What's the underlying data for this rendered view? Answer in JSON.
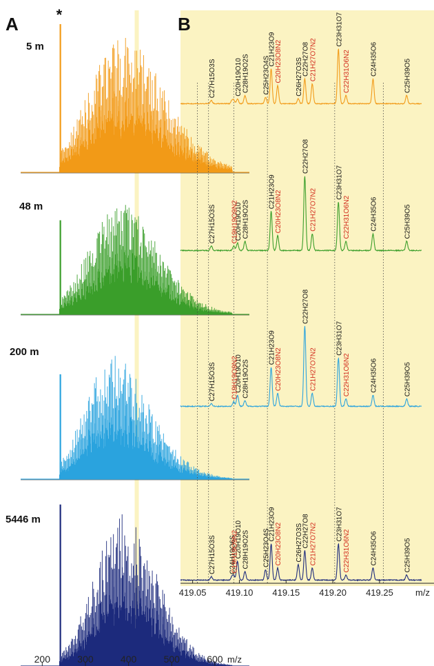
{
  "panel_labels": {
    "a": "A",
    "b": "B"
  },
  "colors": [
    "#f29a17",
    "#3a9e2a",
    "#2aa3de",
    "#1c2a7c"
  ],
  "highlight_color": "#fbf3c2",
  "chart_data": [
    {
      "type": "bar",
      "panel": "A",
      "description_units": "relative abundance",
      "xlabel": "m/z",
      "xlim": [
        150,
        680
      ],
      "xticks": [
        200,
        300,
        400,
        500,
        600
      ],
      "xtick_labels": [
        "200",
        "300",
        "400",
        "500",
        "600"
      ],
      "highlight_x": 419,
      "series": [
        {
          "name": "5 m",
          "color": "#f29a17",
          "envelope": {
            "center": 390,
            "width": 88,
            "skew": 0.12,
            "start": 240,
            "end": 640
          },
          "spike": {
            "x": 242,
            "value": 1.0,
            "marker": "*"
          }
        },
        {
          "name": "48 m",
          "color": "#3a9e2a",
          "envelope": {
            "center": 385,
            "width": 80,
            "skew": 0.1,
            "start": 240,
            "end": 640
          },
          "spike": {
            "x": 242,
            "value": 0.78
          }
        },
        {
          "name": "200 m",
          "color": "#2aa3de",
          "envelope": {
            "center": 368,
            "width": 74,
            "skew": 0.15,
            "start": 240,
            "end": 640
          },
          "spike": {
            "x": 242,
            "value": 0.78
          }
        },
        {
          "name": "5446 m",
          "color": "#1c2a7c",
          "envelope": {
            "center": 390,
            "width": 72,
            "skew": 0.08,
            "start": 240,
            "end": 640
          },
          "spike": {
            "x": 242,
            "value": 0.96
          }
        }
      ]
    },
    {
      "type": "line",
      "panel": "B",
      "xlabel": "m/z",
      "xlim": [
        419.037,
        419.295
      ],
      "xticks": [
        419.05,
        419.1,
        419.15,
        419.2,
        419.25
      ],
      "xtick_labels": [
        "419.05",
        "419.10",
        "419.15",
        "419.20",
        "419.25"
      ],
      "dotted_guides": [
        419.055,
        419.067,
        419.094,
        419.13,
        419.202,
        419.254
      ],
      "formulas": [
        {
          "key": "f01",
          "text": "C27H15O3S",
          "x": 419.07,
          "color": "black"
        },
        {
          "key": "f02",
          "text": "C24H19O6S",
          "x": 419.092,
          "color": "black"
        },
        {
          "key": "f03",
          "text": "C20H19O10",
          "x": 419.098,
          "color": "black"
        },
        {
          "key": "f04",
          "text": "C19H19O9N2",
          "x": 419.094,
          "color": "red"
        },
        {
          "key": "f05",
          "text": "C28H19O2S",
          "x": 419.106,
          "color": "black"
        },
        {
          "key": "f06",
          "text": "C25H23O4S",
          "x": 419.128,
          "color": "black"
        },
        {
          "key": "f07",
          "text": "C21H23O9",
          "x": 419.134,
          "color": "black"
        },
        {
          "key": "f08",
          "text": "C20H23O8N2",
          "x": 419.141,
          "color": "red"
        },
        {
          "key": "f09",
          "text": "C26H27O3S",
          "x": 419.163,
          "color": "black"
        },
        {
          "key": "f10",
          "text": "C22H27O8",
          "x": 419.17,
          "color": "black"
        },
        {
          "key": "f11",
          "text": "C21H27O7N2",
          "x": 419.178,
          "color": "red"
        },
        {
          "key": "f12",
          "text": "C23H31O7",
          "x": 419.206,
          "color": "black"
        },
        {
          "key": "f13",
          "text": "C22H31O6N2",
          "x": 419.214,
          "color": "red"
        },
        {
          "key": "f14",
          "text": "C24H35O6",
          "x": 419.243,
          "color": "black"
        },
        {
          "key": "f15",
          "text": "C25H39O5",
          "x": 419.279,
          "color": "black"
        }
      ],
      "series": [
        {
          "name": "5 m",
          "color": "#f29a17",
          "peaks": {
            "f01": 0.04,
            "f02": 0.04,
            "f03": 0.06,
            "f04": 0.04,
            "f05": 0.1,
            "f06": 0.08,
            "f07": 0.42,
            "f08": 0.22,
            "f09": 0.06,
            "f10": 0.3,
            "f11": 0.24,
            "f12": 0.66,
            "f13": 0.1,
            "f14": 0.3,
            "f15": 0.1
          },
          "labels": [
            "f01",
            "f03",
            "f05",
            "f06",
            "f07",
            "f08",
            "f09",
            "f10",
            "f11",
            "f12",
            "f13",
            "f14",
            "f15"
          ]
        },
        {
          "name": "48 m",
          "color": "#3a9e2a",
          "peaks": {
            "f01": 0.05,
            "f03": 0.08,
            "f04": 0.05,
            "f05": 0.1,
            "f07": 0.42,
            "f08": 0.16,
            "f10": 0.8,
            "f11": 0.18,
            "f12": 0.52,
            "f13": 0.1,
            "f14": 0.18,
            "f15": 0.1
          },
          "labels": [
            "f01",
            "f03",
            "f04",
            "f05",
            "f07",
            "f08",
            "f10",
            "f11",
            "f12",
            "f13",
            "f14",
            "f15"
          ]
        },
        {
          "name": "200 m",
          "color": "#2aa3de",
          "peaks": {
            "f01": 0.03,
            "f03": 0.12,
            "f04": 0.05,
            "f05": 0.06,
            "f07": 0.42,
            "f08": 0.14,
            "f10": 0.86,
            "f11": 0.14,
            "f12": 0.52,
            "f13": 0.08,
            "f14": 0.12,
            "f15": 0.08
          },
          "labels": [
            "f01",
            "f03",
            "f04",
            "f05",
            "f07",
            "f08",
            "f10",
            "f11",
            "f12",
            "f13",
            "f14",
            "f15"
          ]
        },
        {
          "name": "5446 m",
          "color": "#1c2a7c",
          "peaks": {
            "f01": 0.04,
            "f02": 0.04,
            "f03": 0.22,
            "f04": 0.05,
            "f05": 0.1,
            "f06": 0.12,
            "f07": 0.42,
            "f08": 0.14,
            "f09": 0.18,
            "f10": 0.34,
            "f11": 0.14,
            "f12": 0.42,
            "f13": 0.06,
            "f14": 0.14,
            "f15": 0.06
          },
          "labels": [
            "f01",
            "f02",
            "f03",
            "f04",
            "f05",
            "f06",
            "f07",
            "f08",
            "f09",
            "f10",
            "f11",
            "f12",
            "f13",
            "f14",
            "f15"
          ]
        }
      ]
    }
  ]
}
